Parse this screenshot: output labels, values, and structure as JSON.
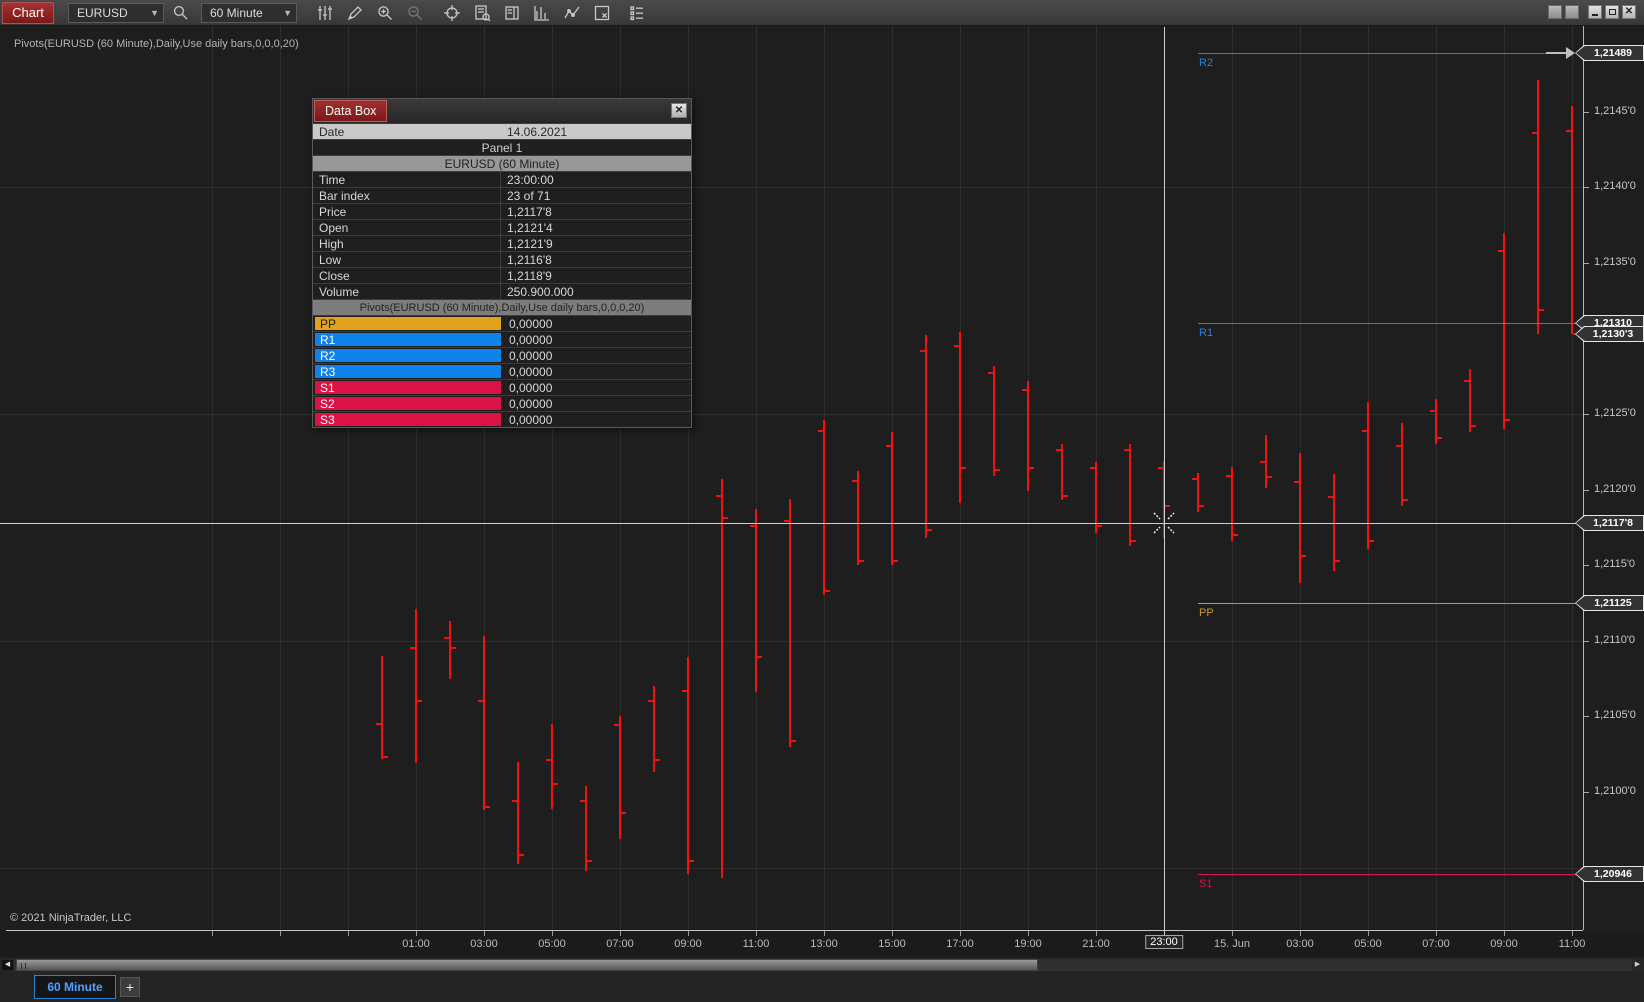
{
  "window": {
    "app_button": "Chart",
    "symbol": "EURUSD",
    "interval": "60 Minute",
    "controls": [
      "window-button-1",
      "window-button-2",
      "minimize",
      "restore",
      "close"
    ]
  },
  "toolbar": {
    "icons": [
      "indicators-icon",
      "draw-icon",
      "zoom-in-icon",
      "zoom-out-icon",
      "crosshair-icon",
      "data-box-icon",
      "chart-trader-icon",
      "bar-type-icon",
      "trendline-icon",
      "snapshot-icon",
      "properties-icon"
    ]
  },
  "indicator_label": "Pivots(EURUSD (60 Minute),Daily,Use daily bars,0,0,0,20)",
  "copyright": "© 2021 NinjaTrader, LLC",
  "data_box": {
    "title": "Data Box",
    "close_icon": "x",
    "date_label": "Date",
    "date_value": "14.06.2021",
    "panel": "Panel 1",
    "instrument": "EURUSD (60 Minute)",
    "fields": [
      {
        "label": "Time",
        "value": "23:00:00"
      },
      {
        "label": "Bar index",
        "value": "23 of 71"
      },
      {
        "label": "Price",
        "value": "1,2117'8"
      },
      {
        "label": "Open",
        "value": "1,2121'4"
      },
      {
        "label": "High",
        "value": "1,2121'9"
      },
      {
        "label": "Low",
        "value": "1,2116'8"
      },
      {
        "label": "Close",
        "value": "1,2118'9"
      },
      {
        "label": "Volume",
        "value": "250.900.000"
      }
    ],
    "pivots_header": "Pivots(EURUSD (60 Minute),Daily,Use daily bars,0,0,0,20)",
    "pivot_rows": [
      {
        "label": "PP",
        "value": "0,00000",
        "bg": "#e2a21b",
        "fg": "#1a1a1a"
      },
      {
        "label": "R1",
        "value": "0,00000",
        "bg": "#0e82e8",
        "fg": "#ffffff"
      },
      {
        "label": "R2",
        "value": "0,00000",
        "bg": "#0e82e8",
        "fg": "#ffffff"
      },
      {
        "label": "R3",
        "value": "0,00000",
        "bg": "#0e82e8",
        "fg": "#ffffff"
      },
      {
        "label": "S1",
        "value": "0,00000",
        "bg": "#dc1145",
        "fg": "#ffffff"
      },
      {
        "label": "S2",
        "value": "0,00000",
        "bg": "#dc1145",
        "fg": "#ffffff"
      },
      {
        "label": "S3",
        "value": "0,00000",
        "bg": "#dc1145",
        "fg": "#ffffff"
      }
    ]
  },
  "chart_data": {
    "type": "bar",
    "subtype": "ohlc-bars",
    "instrument": "EURUSD",
    "interval": "60 Minute",
    "bar_color": "#f41010",
    "grid": true,
    "y_axis": {
      "visible_max": 1.21506,
      "visible_min": 1.20908,
      "tick_labels": [
        {
          "label": "1,2145'0",
          "value": 1.2145
        },
        {
          "label": "1,2140'0",
          "value": 1.214
        },
        {
          "label": "1,2135'0",
          "value": 1.2135
        },
        {
          "label": "1,2125'0",
          "value": 1.2125
        },
        {
          "label": "1,2120'0",
          "value": 1.212
        },
        {
          "label": "1,2115'0",
          "value": 1.2115
        },
        {
          "label": "1,2110'0",
          "value": 1.211
        },
        {
          "label": "1,2105'0",
          "value": 1.2105
        },
        {
          "label": "1,2100'0",
          "value": 1.21
        }
      ],
      "gridline_values": [
        1.214,
        1.2125,
        1.211,
        1.2095
      ]
    },
    "x_axis": {
      "tick_labels": [
        {
          "label": "01:00"
        },
        {
          "label": "03:00"
        },
        {
          "label": "05:00"
        },
        {
          "label": "07:00"
        },
        {
          "label": "09:00"
        },
        {
          "label": "11:00"
        },
        {
          "label": "13:00"
        },
        {
          "label": "15:00"
        },
        {
          "label": "17:00"
        },
        {
          "label": "19:00"
        },
        {
          "label": "21:00"
        },
        {
          "label": "23:00",
          "boxed": true
        },
        {
          "label": "15. Jun"
        },
        {
          "label": "03:00"
        },
        {
          "label": "05:00"
        },
        {
          "label": "07:00"
        },
        {
          "label": "09:00"
        },
        {
          "label": "11:00"
        }
      ]
    },
    "bars": [
      {
        "time": "14.06 00:00",
        "o": 1.21045,
        "h": 1.2109,
        "l": 1.21022,
        "c": 1.21023
      },
      {
        "time": "14.06 01:00",
        "o": 1.21095,
        "h": 1.21121,
        "l": 1.21019,
        "c": 1.2106
      },
      {
        "time": "14.06 02:00",
        "o": 1.21102,
        "h": 1.21113,
        "l": 1.21075,
        "c": 1.21095
      },
      {
        "time": "14.06 03:00",
        "o": 1.2106,
        "h": 1.21103,
        "l": 1.20988,
        "c": 1.2099
      },
      {
        "time": "14.06 04:00",
        "o": 1.20994,
        "h": 1.2102,
        "l": 1.20952,
        "c": 1.20958
      },
      {
        "time": "14.06 05:00",
        "o": 1.21021,
        "h": 1.21045,
        "l": 1.20989,
        "c": 1.21005
      },
      {
        "time": "14.06 06:00",
        "o": 1.20994,
        "h": 1.21004,
        "l": 1.20948,
        "c": 1.20954
      },
      {
        "time": "14.06 07:00",
        "o": 1.21044,
        "h": 1.2105,
        "l": 1.20969,
        "c": 1.20986
      },
      {
        "time": "14.06 08:00",
        "o": 1.2106,
        "h": 1.2107,
        "l": 1.21013,
        "c": 1.21021
      },
      {
        "time": "14.06 09:00",
        "o": 1.21067,
        "h": 1.21089,
        "l": 1.20946,
        "c": 1.20954
      },
      {
        "time": "14.06 10:00",
        "o": 1.21196,
        "h": 1.21207,
        "l": 1.20943,
        "c": 1.21181
      },
      {
        "time": "14.06 11:00",
        "o": 1.21176,
        "h": 1.21187,
        "l": 1.21066,
        "c": 1.21089
      },
      {
        "time": "14.06 12:00",
        "o": 1.21179,
        "h": 1.21194,
        "l": 1.2103,
        "c": 1.21034
      },
      {
        "time": "14.06 13:00",
        "o": 1.21239,
        "h": 1.21246,
        "l": 1.2113,
        "c": 1.21133
      },
      {
        "time": "14.06 14:00",
        "o": 1.21206,
        "h": 1.21212,
        "l": 1.2115,
        "c": 1.21153
      },
      {
        "time": "14.06 15:00",
        "o": 1.21229,
        "h": 1.21238,
        "l": 1.2115,
        "c": 1.21153
      },
      {
        "time": "14.06 16:00",
        "o": 1.21292,
        "h": 1.21302,
        "l": 1.21168,
        "c": 1.21173
      },
      {
        "time": "14.06 17:00",
        "o": 1.21295,
        "h": 1.21304,
        "l": 1.21191,
        "c": 1.21214
      },
      {
        "time": "14.06 18:00",
        "o": 1.21277,
        "h": 1.21282,
        "l": 1.21209,
        "c": 1.21213
      },
      {
        "time": "14.06 19:00",
        "o": 1.21266,
        "h": 1.21272,
        "l": 1.21199,
        "c": 1.21214
      },
      {
        "time": "14.06 20:00",
        "o": 1.21226,
        "h": 1.2123,
        "l": 1.21193,
        "c": 1.21196
      },
      {
        "time": "14.06 21:00",
        "o": 1.21214,
        "h": 1.21218,
        "l": 1.21171,
        "c": 1.21176
      },
      {
        "time": "14.06 22:00",
        "o": 1.21226,
        "h": 1.2123,
        "l": 1.21163,
        "c": 1.21166
      },
      {
        "time": "14.06 23:00",
        "o": 1.21214,
        "h": 1.21219,
        "l": 1.21168,
        "c": 1.21189
      },
      {
        "time": "15.06 00:00",
        "o": 1.21207,
        "h": 1.21211,
        "l": 1.21185,
        "c": 1.21189
      },
      {
        "time": "15.06 01:00",
        "o": 1.21209,
        "h": 1.21215,
        "l": 1.21166,
        "c": 1.2117
      },
      {
        "time": "15.06 02:00",
        "o": 1.21218,
        "h": 1.21236,
        "l": 1.21201,
        "c": 1.21208
      },
      {
        "time": "15.06 03:00",
        "o": 1.21205,
        "h": 1.21224,
        "l": 1.21138,
        "c": 1.21156
      },
      {
        "time": "15.06 04:00",
        "o": 1.21195,
        "h": 1.2121,
        "l": 1.21146,
        "c": 1.21153
      },
      {
        "time": "15.06 05:00",
        "o": 1.21239,
        "h": 1.21258,
        "l": 1.21161,
        "c": 1.21166
      },
      {
        "time": "15.06 06:00",
        "o": 1.21229,
        "h": 1.21244,
        "l": 1.21189,
        "c": 1.21193
      },
      {
        "time": "15.06 07:00",
        "o": 1.21252,
        "h": 1.2126,
        "l": 1.2123,
        "c": 1.21234
      },
      {
        "time": "15.06 08:00",
        "o": 1.21272,
        "h": 1.2128,
        "l": 1.21238,
        "c": 1.21242
      },
      {
        "time": "15.06 09:00",
        "o": 1.21358,
        "h": 1.2137,
        "l": 1.2124,
        "c": 1.21246
      },
      {
        "time": "15.06 10:00",
        "o": 1.21436,
        "h": 1.21471,
        "l": 1.21303,
        "c": 1.21319
      },
      {
        "time": "15.06 11:00",
        "o": 1.21437,
        "h": 1.21454,
        "l": 1.21303,
        "c": 1.21303
      }
    ],
    "pivot_lines": [
      {
        "name": "R2",
        "value": 1.21489,
        "color": "#2f7fd0",
        "arrow": true
      },
      {
        "name": "R1",
        "value": 1.2131,
        "color": "#2f7fd0",
        "arrow": false
      },
      {
        "name": "PP",
        "value": 1.21125,
        "color": "#c9992e",
        "arrow": false
      },
      {
        "name": "S1",
        "value": 1.20946,
        "color": "#d6134a",
        "arrow": false
      }
    ],
    "price_tags": [
      {
        "label": "1,21489",
        "value": 1.21489,
        "kind": "r2-level"
      },
      {
        "label": "1,21310",
        "value": 1.2131,
        "kind": "r1-level"
      },
      {
        "label": "1,2130'3",
        "value": 1.21303,
        "kind": "last-price"
      },
      {
        "label": "1,2117'8",
        "value": 1.21178,
        "kind": "crosshair-price"
      },
      {
        "label": "1,21125",
        "value": 1.21125,
        "kind": "pp-level"
      },
      {
        "label": "1,20946",
        "value": 1.20946,
        "kind": "s1-level"
      }
    ],
    "crosshair": {
      "bar_index": 23,
      "price": 1.21178,
      "price_label": "1,2117'8",
      "time_label": "23:00"
    }
  },
  "tabs": {
    "active": "60 Minute",
    "add": "+"
  },
  "scrollbar": {
    "left_arrow": "left",
    "right_arrow": "right"
  }
}
